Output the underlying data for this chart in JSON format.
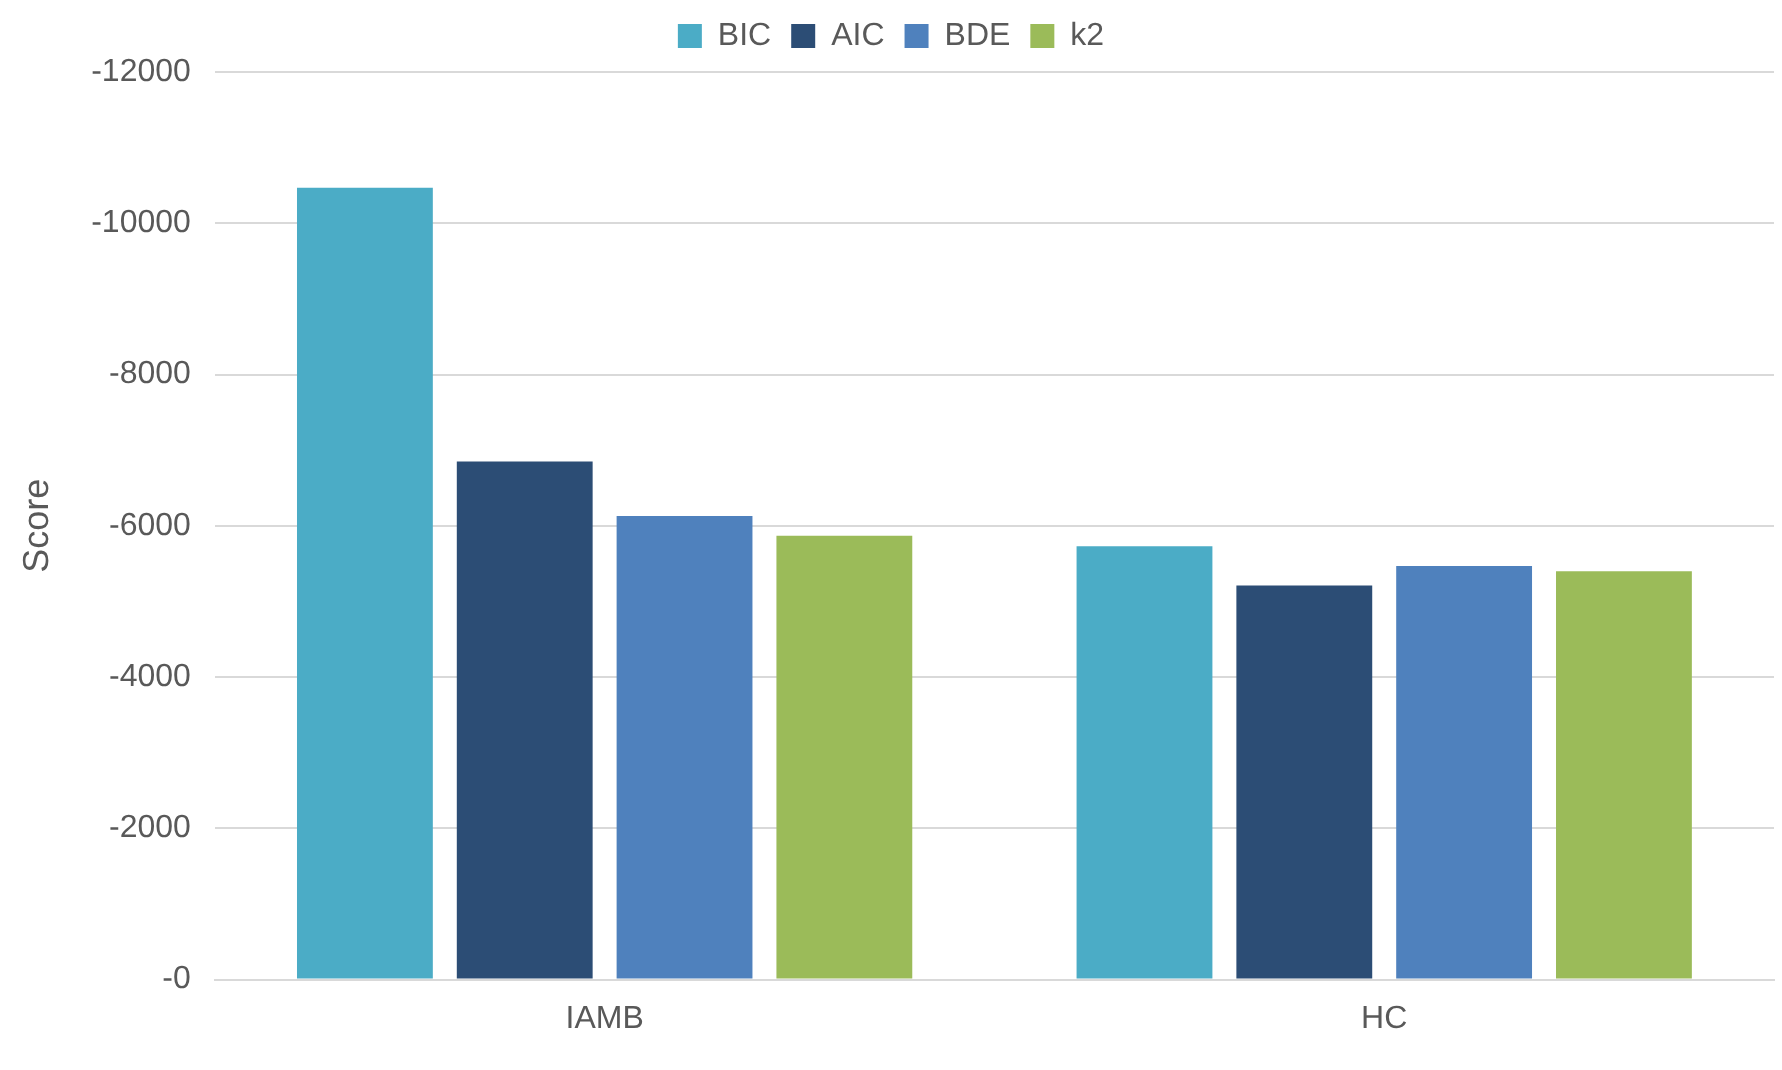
{
  "chart_data": {
    "type": "bar",
    "ylabel": "Score",
    "categories": [
      "IAMB",
      "HC"
    ],
    "series": [
      {
        "name": "BIC",
        "color": "#4bacc6",
        "values": [
          -10470,
          -5730
        ]
      },
      {
        "name": "AIC",
        "color": "#2c4d75",
        "values": [
          -6850,
          -5210
        ]
      },
      {
        "name": "BDE",
        "color": "#4f81bd",
        "values": [
          -6130,
          -5470
        ]
      },
      {
        "name": "k2",
        "color": "#9bbb59",
        "values": [
          -5870,
          -5400
        ]
      }
    ],
    "ylim": [
      0,
      -12000
    ],
    "yticks": [
      {
        "value": 0,
        "label": "-0"
      },
      -2000,
      -4000,
      -6000,
      -8000,
      -10000,
      -12000
    ],
    "grid": "y",
    "legend": "top"
  }
}
